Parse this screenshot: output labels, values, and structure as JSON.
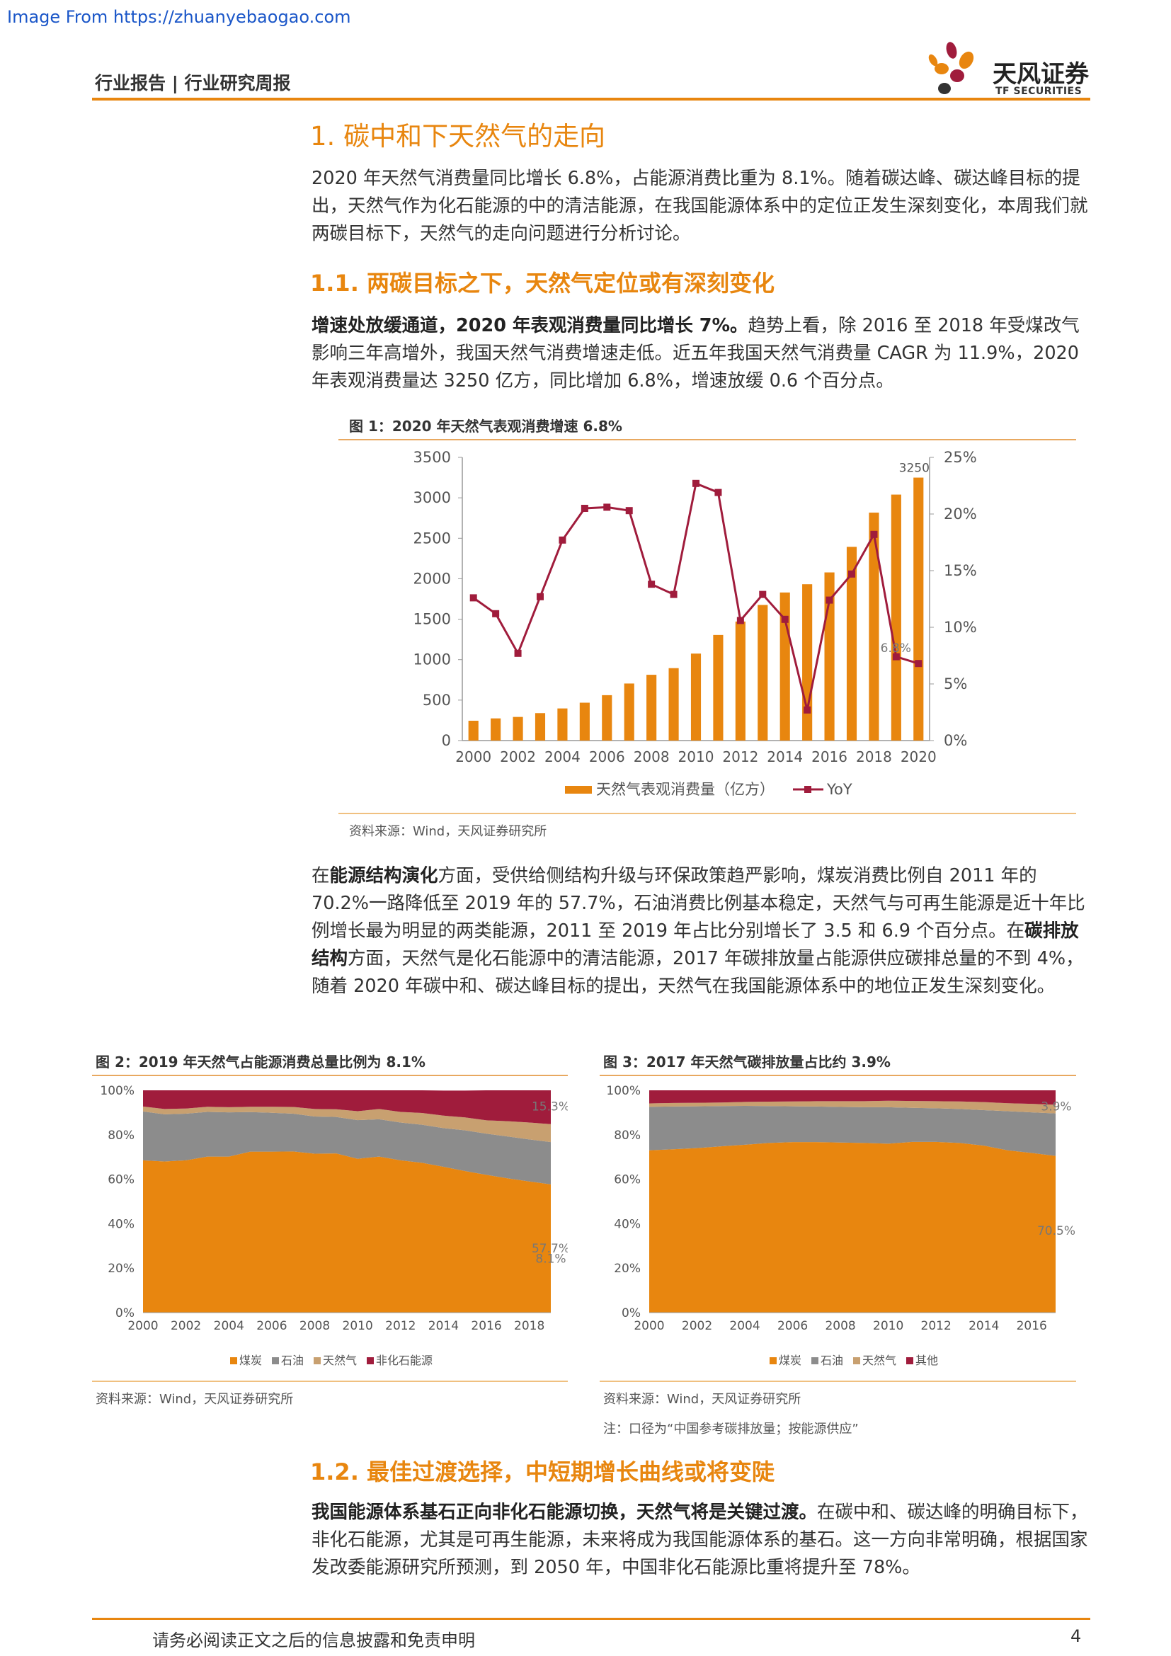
{
  "watermark": "Image From https://zhuanyebaogao.com",
  "header": {
    "left": "行业报告 | 行业研究周报",
    "logo_cn": "天风证券",
    "logo_en": "TF SECURITIES"
  },
  "section1": {
    "title": "1. 碳中和下天然气的走向",
    "intro": "2020 年天然气消费量同比增长 6.8%，占能源消费比重为 8.1%。随着碳达峰、碳达峰目标的提出，天然气作为化石能源的中的清洁能源，在我国能源体系中的定位正发生深刻变化，本周我们就两碳目标下，天然气的走向问题进行分析讨论。"
  },
  "section11": {
    "title": "1.1. 两碳目标之下，天然气定位或有深刻变化",
    "lead_bold": "增速处放缓通道，2020 年表观消费量同比增长 7%。",
    "lead_rest": "趋势上看，除 2016 至 2018 年受煤改气影响三年高增外，我国天然气消费增速走低。近五年我国天然气消费量 CAGR 为 11.9%，2020 年表观消费量达 3250 亿方，同比增加 6.8%，增速放缓 0.6 个百分点。"
  },
  "para2": {
    "p1": "在",
    "b1": "能源结构演化",
    "p2": "方面，受供给侧结构升级与环保政策趋严影响，煤炭消费比例自 2011 年的 70.2%一路降低至 2019 年的 57.7%，石油消费比例基本稳定，天然气与可再生能源是近十年比例增长最为明显的两类能源，2011 至 2019 年占比分别增长了 3.5 和 6.9 个百分点。在",
    "b2": "碳排放结构",
    "p3": "方面，天然气是化石能源中的清洁能源，2017 年碳排放量占能源供应碳排总量的不到 4%，随着 2020 年碳中和、碳达峰目标的提出，天然气在我国能源体系中的地位正发生深刻变化。"
  },
  "section12": {
    "title": "1.2. 最佳过渡选择，中短期增长曲线或将变陡",
    "lead_bold": "我国能源体系基石正向非化石能源切换，天然气将是关键过渡。",
    "lead_rest": "在碳中和、碳达峰的明确目标下，非化石能源，尤其是可再生能源，未来将成为我国能源体系的基石。这一方向非常明确，根据国家发改委能源研究所预测，到 2050 年，中国非化石能源比重将提升至 78%。"
  },
  "footer": {
    "text": "请务必阅读正文之后的信息披露和免责申明",
    "page": "4"
  },
  "colors": {
    "orange": "#e8860f",
    "gray": "#8c8c8c",
    "tan": "#c8a070",
    "crimson": "#a01c3c"
  },
  "chart_data": [
    {
      "type": "bar",
      "figure_title": "图 1：2020 年天然气表观消费增速 6.8%",
      "source": "资料来源：Wind，天风证券研究所",
      "x": [
        2000,
        2001,
        2002,
        2003,
        2004,
        2005,
        2006,
        2007,
        2008,
        2009,
        2010,
        2011,
        2012,
        2013,
        2014,
        2015,
        2016,
        2017,
        2018,
        2019,
        2020
      ],
      "x_tick_labels": [
        "2000",
        "2002",
        "2004",
        "2006",
        "2008",
        "2010",
        "2012",
        "2014",
        "2016",
        "2018",
        "2020"
      ],
      "series": [
        {
          "name": "天然气表观消费量（亿方）",
          "type": "bar",
          "axis": "left",
          "values": [
            245,
            274,
            292,
            339,
            397,
            468,
            561,
            705,
            813,
            895,
            1075,
            1305,
            1471,
            1676,
            1830,
            1932,
            2078,
            2394,
            2817,
            3040,
            3250
          ]
        },
        {
          "name": "YoY",
          "type": "line",
          "axis": "right",
          "values": [
            12.6,
            11.2,
            7.7,
            12.7,
            17.7,
            20.5,
            20.6,
            20.3,
            13.8,
            12.9,
            22.7,
            21.9,
            10.6,
            12.9,
            10.7,
            2.7,
            12.4,
            14.7,
            18.2,
            7.4,
            6.8
          ]
        }
      ],
      "ylim_left": [
        0,
        3500
      ],
      "yticks_left": [
        "0",
        "500",
        "1000",
        "1500",
        "2000",
        "2500",
        "3000",
        "3500"
      ],
      "ylim_right": [
        0,
        25
      ],
      "yticks_right": [
        "0%",
        "5%",
        "10%",
        "15%",
        "20%",
        "25%"
      ],
      "annotations": [
        "3250",
        "6.8%"
      ],
      "legend": "bottom"
    },
    {
      "type": "area",
      "figure_title": "图 2：2019 年天然气占能源消费总量比例为 8.1%",
      "source": "资料来源：Wind，天风证券研究所",
      "x": [
        2000,
        2001,
        2002,
        2003,
        2004,
        2005,
        2006,
        2007,
        2008,
        2009,
        2010,
        2011,
        2012,
        2013,
        2014,
        2015,
        2016,
        2017,
        2018,
        2019
      ],
      "x_tick_labels": [
        "2000",
        "2002",
        "2004",
        "2006",
        "2008",
        "2010",
        "2012",
        "2014",
        "2016",
        "2018"
      ],
      "series": [
        {
          "name": "煤炭",
          "values": [
            68.5,
            68.0,
            68.5,
            70.2,
            70.2,
            72.4,
            72.4,
            72.5,
            71.5,
            71.6,
            69.2,
            70.2,
            68.5,
            67.4,
            65.6,
            63.7,
            62.0,
            60.4,
            59.0,
            57.7
          ]
        },
        {
          "name": "石油",
          "values": [
            22.0,
            21.2,
            21.0,
            20.1,
            19.9,
            17.8,
            17.5,
            17.0,
            16.7,
            16.4,
            17.4,
            16.8,
            17.0,
            17.1,
            17.4,
            18.3,
            18.5,
            18.8,
            18.9,
            19.0
          ]
        },
        {
          "name": "天然气",
          "values": [
            2.2,
            2.4,
            2.3,
            2.3,
            2.3,
            2.4,
            2.7,
            3.0,
            3.4,
            3.5,
            4.0,
            4.6,
            4.8,
            5.3,
            5.6,
            5.8,
            6.0,
            6.9,
            7.6,
            8.1
          ]
        },
        {
          "name": "非化石能源",
          "values": [
            7.3,
            8.4,
            8.2,
            7.4,
            7.6,
            7.4,
            7.4,
            7.5,
            8.4,
            8.5,
            9.4,
            8.4,
            9.7,
            10.2,
            11.3,
            12.1,
            13.5,
            13.9,
            14.5,
            15.3
          ]
        }
      ],
      "ylim": [
        0,
        100
      ],
      "yticks": [
        "0%",
        "20%",
        "40%",
        "60%",
        "80%",
        "100%"
      ],
      "annotations": [
        "57.7%",
        "8.1%",
        "15.3%"
      ],
      "legend": "bottom"
    },
    {
      "type": "area",
      "figure_title": "图 3：2017 年天然气碳排放量占比约 3.9%",
      "source": "资料来源：Wind，天风证券研究所",
      "note": "注：口径为“中国参考碳排放量；按能源供应”",
      "x": [
        2000,
        2001,
        2002,
        2003,
        2004,
        2005,
        2006,
        2007,
        2008,
        2009,
        2010,
        2011,
        2012,
        2013,
        2014,
        2015,
        2016,
        2017
      ],
      "x_tick_labels": [
        "2000",
        "2002",
        "2004",
        "2006",
        "2008",
        "2010",
        "2012",
        "2014",
        "2016"
      ],
      "series": [
        {
          "name": "煤炭",
          "values": [
            73.0,
            73.5,
            74.0,
            74.8,
            75.5,
            76.3,
            76.7,
            76.7,
            76.5,
            76.3,
            76.0,
            76.8,
            76.8,
            76.3,
            75.1,
            73.0,
            71.8,
            70.5
          ]
        },
        {
          "name": "石油",
          "values": [
            19.6,
            19.2,
            18.8,
            18.1,
            17.5,
            16.6,
            16.1,
            16.0,
            16.0,
            16.1,
            16.4,
            15.3,
            15.1,
            15.3,
            16.0,
            17.6,
            18.3,
            19.1
          ]
        },
        {
          "name": "天然气",
          "values": [
            1.5,
            1.6,
            1.6,
            1.6,
            1.8,
            2.0,
            2.2,
            2.4,
            2.6,
            2.7,
            2.9,
            3.1,
            3.2,
            3.4,
            3.6,
            3.6,
            3.8,
            3.9
          ]
        },
        {
          "name": "其他",
          "values": [
            5.9,
            5.7,
            5.6,
            5.5,
            5.2,
            5.1,
            5.0,
            4.9,
            4.9,
            4.9,
            4.7,
            4.8,
            4.9,
            5.0,
            5.3,
            5.8,
            6.1,
            6.5
          ]
        }
      ],
      "ylim": [
        0,
        100
      ],
      "yticks": [
        "0%",
        "20%",
        "40%",
        "60%",
        "80%",
        "100%"
      ],
      "annotations": [
        "70.5%",
        "3.9%"
      ],
      "legend": "bottom"
    }
  ]
}
